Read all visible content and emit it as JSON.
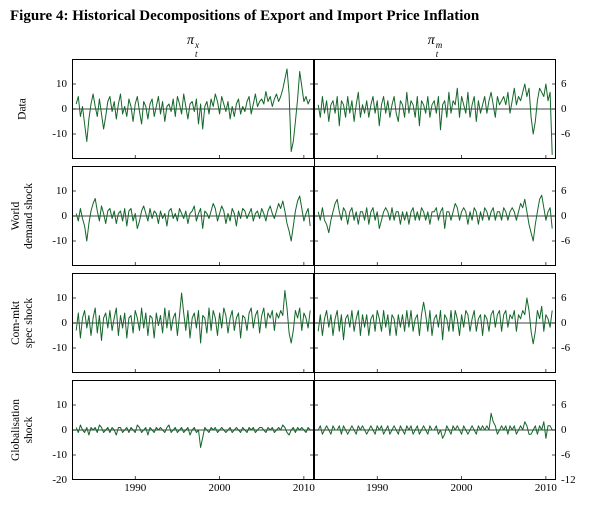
{
  "figure": {
    "title": "Figure 4: Historical Decompositions of Export and Import Price Inflation",
    "line_color": "#14662a"
  },
  "columns": [
    {
      "pi": "π",
      "sub": "t",
      "sup": "x"
    },
    {
      "pi": "π",
      "sub": "t",
      "sup": "m"
    }
  ],
  "rows": [
    {
      "lines": [
        "Data"
      ]
    },
    {
      "lines": [
        "World",
        "demand shock"
      ]
    },
    {
      "lines": [
        "Com-mkt",
        "spec shock"
      ]
    },
    {
      "lines": [
        "Globalisation",
        "shock"
      ]
    }
  ],
  "chart_data": {
    "type": "line",
    "title": "Figure 4: Historical Decompositions of Export and Import Price Inflation",
    "column_labels": [
      "π^x_t",
      "π^m_t"
    ],
    "row_labels": [
      "Data",
      "World demand shock",
      "Com-mkt spec shock",
      "Globalisation shock"
    ],
    "grid": false,
    "legend": "none",
    "x_start": 1983.0,
    "x_step": 0.25,
    "x_range": [
      1982.5,
      2011.2
    ],
    "x_ticks": [
      1990,
      2000,
      2010
    ],
    "x_tick_labels": [
      "1990",
      "2000",
      "2010"
    ],
    "left_ylim": [
      -20,
      20
    ],
    "left_yticks": [
      10,
      0,
      -10
    ],
    "left_bottom_label": "-20",
    "right_ylim": [
      -12,
      12
    ],
    "right_yticks": [
      6,
      0,
      -6
    ],
    "right_bottom_label": "-12",
    "series": [
      {
        "name": "Data (export, pi^x_t)",
        "values": [
          2,
          5,
          -3,
          1,
          -6,
          -13,
          -4,
          2,
          6,
          1,
          -3,
          4,
          -2,
          -8,
          -3,
          3,
          5,
          -1,
          3,
          -4,
          2,
          6,
          -2,
          1,
          -3,
          4,
          1,
          -5,
          2,
          5,
          -1,
          -6,
          3,
          1,
          -4,
          2,
          4,
          -3,
          1,
          5,
          -2,
          3,
          -5,
          1,
          2,
          -1,
          4,
          -3,
          5,
          2,
          -2,
          6,
          1,
          -4,
          2,
          3,
          -1,
          4,
          -6,
          2,
          -8,
          1,
          3,
          -2,
          4,
          1,
          6,
          3,
          -2,
          5,
          2,
          -1,
          3,
          -4,
          1,
          -3,
          2,
          4,
          -2,
          1,
          -1,
          3,
          5,
          -2,
          2,
          6,
          1,
          3,
          4,
          2,
          7,
          3,
          5,
          1,
          4,
          6,
          3,
          5,
          8,
          12,
          16,
          6,
          -17,
          -13,
          -5,
          4,
          15,
          9,
          3,
          5,
          2,
          4
        ]
      },
      {
        "name": "Data (import, pi^m_t)",
        "values": [
          1,
          -2,
          3,
          -1,
          2,
          -3,
          1,
          2,
          -1,
          3,
          -4,
          2,
          1,
          -2,
          3,
          -1,
          2,
          -3,
          1,
          4,
          -2,
          1,
          -1,
          2,
          -2,
          1,
          3,
          -1,
          2,
          -4,
          1,
          3,
          -1,
          2,
          -2,
          1,
          3,
          -1,
          -3,
          2,
          1,
          -2,
          4,
          -1,
          2,
          1,
          -2,
          3,
          -4,
          2,
          1,
          -1,
          3,
          -2,
          1,
          2,
          -1,
          3,
          -5,
          1,
          2,
          -2,
          4,
          -1,
          2,
          1,
          5,
          -2,
          3,
          1,
          -1,
          4,
          -2,
          1,
          3,
          -3,
          2,
          -1,
          1,
          3,
          -1,
          2,
          4,
          1,
          -2,
          3,
          1,
          2,
          3,
          1,
          4,
          -1,
          2,
          5,
          1,
          3,
          2,
          4,
          6,
          3,
          5,
          -2,
          -6,
          -3,
          2,
          5,
          4,
          3,
          6,
          2,
          4,
          -11
        ]
      },
      {
        "name": "World demand shock (export)",
        "values": [
          1,
          -2,
          3,
          -1,
          -4,
          -10,
          -3,
          2,
          5,
          7,
          2,
          -2,
          4,
          1,
          -3,
          2,
          3,
          -1,
          2,
          -3,
          1,
          2,
          -2,
          3,
          -4,
          2,
          3,
          -2,
          1,
          -5,
          -2,
          2,
          4,
          1,
          -2,
          3,
          -1,
          2,
          1,
          -3,
          2,
          -1,
          1,
          -4,
          2,
          3,
          -1,
          1,
          -2,
          3,
          1,
          -1,
          2,
          -3,
          1,
          2,
          4,
          -2,
          1,
          3,
          -5,
          2,
          1,
          -1,
          2,
          5,
          3,
          -2,
          1,
          4,
          2,
          -3,
          1,
          -2,
          3,
          1,
          -4,
          2,
          -1,
          3,
          2,
          -1,
          1,
          3,
          -2,
          1,
          2,
          -1,
          3,
          1,
          -2,
          2,
          4,
          1,
          -1,
          2,
          5,
          3,
          6,
          2,
          -3,
          -6,
          -10,
          -4,
          2,
          6,
          8,
          3,
          -2,
          1,
          3,
          -4
        ]
      },
      {
        "name": "World demand shock (import)",
        "values": [
          1,
          -1,
          2,
          -1,
          -2,
          -4,
          -1,
          1,
          3,
          4,
          1,
          -1,
          2,
          1,
          -2,
          1,
          2,
          -1,
          1,
          -2,
          1,
          1,
          -1,
          2,
          -2,
          1,
          2,
          -1,
          1,
          -3,
          -1,
          1,
          2,
          1,
          -1,
          2,
          -1,
          1,
          1,
          -2,
          1,
          -1,
          1,
          -2,
          1,
          2,
          -1,
          1,
          -1,
          2,
          1,
          -1,
          1,
          -2,
          1,
          1,
          2,
          -1,
          1,
          2,
          -3,
          1,
          1,
          -1,
          1,
          3,
          2,
          -1,
          1,
          2,
          1,
          -2,
          1,
          -1,
          2,
          1,
          -2,
          1,
          -1,
          2,
          1,
          -1,
          1,
          2,
          -1,
          1,
          1,
          -1,
          2,
          1,
          -1,
          1,
          2,
          1,
          -1,
          1,
          3,
          2,
          4,
          1,
          -2,
          -4,
          -6,
          -2,
          1,
          4,
          5,
          2,
          -1,
          1,
          2,
          -3
        ]
      },
      {
        "name": "Com-mkt spec shock (export)",
        "values": [
          -3,
          4,
          -6,
          2,
          5,
          -2,
          3,
          -5,
          2,
          6,
          -4,
          3,
          -7,
          2,
          4,
          -2,
          5,
          -3,
          2,
          6,
          -5,
          3,
          -2,
          4,
          -6,
          2,
          3,
          -4,
          5,
          2,
          -3,
          6,
          -2,
          4,
          -5,
          3,
          2,
          -6,
          4,
          -1,
          3,
          -4,
          6,
          -2,
          5,
          -3,
          2,
          4,
          -5,
          3,
          12,
          4,
          -3,
          5,
          -6,
          2,
          4,
          -2,
          5,
          -8,
          3,
          2,
          -4,
          6,
          -3,
          5,
          2,
          -5,
          4,
          -2,
          6,
          3,
          -4,
          2,
          5,
          -3,
          2,
          4,
          -6,
          3,
          2,
          -3,
          4,
          6,
          -2,
          3,
          5,
          -4,
          3,
          6,
          -2,
          4,
          2,
          5,
          -3,
          4,
          2,
          5,
          3,
          13,
          6,
          -4,
          -8,
          -3,
          5,
          2,
          6,
          -3,
          4,
          2,
          -2,
          5
        ]
      },
      {
        "name": "Com-mkt spec shock (import)",
        "values": [
          -2,
          2,
          -3,
          1,
          3,
          -1,
          2,
          -3,
          1,
          3,
          -2,
          2,
          -4,
          1,
          2,
          -1,
          3,
          -2,
          1,
          3,
          -3,
          2,
          -1,
          2,
          -3,
          1,
          2,
          -2,
          3,
          1,
          -2,
          3,
          -1,
          2,
          -3,
          2,
          1,
          -3,
          2,
          -1,
          2,
          -2,
          3,
          -1,
          3,
          -2,
          1,
          2,
          -3,
          2,
          5,
          2,
          -2,
          3,
          -3,
          1,
          2,
          -1,
          3,
          -4,
          2,
          1,
          -2,
          3,
          -2,
          3,
          1,
          -3,
          2,
          -1,
          3,
          2,
          -2,
          1,
          3,
          -2,
          1,
          2,
          -3,
          2,
          1,
          -2,
          2,
          3,
          -1,
          2,
          3,
          -2,
          2,
          3,
          -1,
          2,
          1,
          3,
          -2,
          2,
          1,
          3,
          2,
          6,
          3,
          -2,
          -5,
          -2,
          3,
          1,
          4,
          -2,
          2,
          1,
          -1,
          3
        ]
      },
      {
        "name": "Globalisation shock (export)",
        "values": [
          1,
          -1,
          2,
          0,
          -1,
          1,
          -2,
          1,
          0,
          1,
          -1,
          2,
          1,
          -1,
          0,
          1,
          -1,
          1,
          0,
          -2,
          1,
          1,
          -1,
          0,
          1,
          -1,
          1,
          0,
          -1,
          2,
          1,
          -1,
          0,
          1,
          -2,
          1,
          0,
          -1,
          1,
          0,
          1,
          0,
          -1,
          1,
          2,
          -1,
          0,
          1,
          -1,
          0,
          1,
          -1,
          0,
          1,
          -2,
          0,
          1,
          -1,
          0,
          -7,
          -3,
          1,
          0,
          -1,
          1,
          0,
          1,
          -1,
          0,
          1,
          0,
          -1,
          0,
          1,
          -1,
          0,
          1,
          0,
          -1,
          1,
          0,
          -1,
          1,
          0,
          1,
          -1,
          0,
          1,
          1,
          0,
          -1,
          1,
          0,
          1,
          -1,
          0,
          1,
          0,
          2,
          1,
          -1,
          -2,
          0,
          1,
          -1,
          1,
          0,
          1,
          0,
          -1,
          1,
          0
        ]
      },
      {
        "name": "Globalisation shock (import)",
        "values": [
          0,
          1,
          -1,
          0,
          1,
          0,
          -1,
          1,
          0,
          0,
          1,
          -1,
          1,
          0,
          -1,
          0,
          1,
          0,
          -1,
          1,
          0,
          1,
          0,
          -1,
          0,
          1,
          0,
          -1,
          1,
          0,
          1,
          -1,
          0,
          1,
          -1,
          0,
          1,
          0,
          -1,
          1,
          0,
          -1,
          1,
          0,
          1,
          -1,
          0,
          1,
          -1,
          0,
          1,
          0,
          -1,
          1,
          0,
          0,
          1,
          -1,
          0,
          -2,
          -1,
          1,
          0,
          -1,
          1,
          0,
          1,
          0,
          -1,
          1,
          0,
          -1,
          0,
          1,
          0,
          -1,
          1,
          0,
          1,
          0,
          1,
          0,
          4,
          2,
          1,
          -1,
          0,
          1,
          0,
          1,
          -1,
          1,
          0,
          1,
          -1,
          0,
          1,
          0,
          2,
          1,
          -1,
          -1,
          0,
          1,
          -1,
          1,
          0,
          2,
          -2,
          1,
          1,
          0
        ]
      }
    ]
  }
}
